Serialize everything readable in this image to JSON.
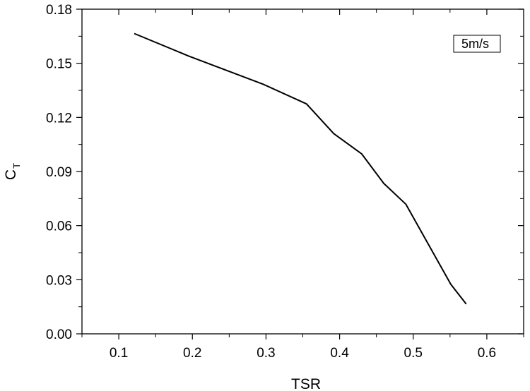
{
  "chart_data": {
    "type": "line",
    "xlabel": "TSR",
    "ylabel": "C",
    "ylabel_sub": "T",
    "xlim": [
      0.05,
      0.65
    ],
    "ylim": [
      0.0,
      0.18
    ],
    "x_ticks": [
      "0.1",
      "0.2",
      "0.3",
      "0.4",
      "0.5",
      "0.6"
    ],
    "y_ticks": [
      "0.00",
      "0.03",
      "0.06",
      "0.09",
      "0.12",
      "0.15",
      "0.18"
    ],
    "grid": false,
    "legend_position": "top-right",
    "series": [
      {
        "name": "5m/s",
        "color": "#000000",
        "x": [
          0.121,
          0.195,
          0.296,
          0.355,
          0.392,
          0.43,
          0.46,
          0.49,
          0.551,
          0.572
        ],
        "y": [
          0.1665,
          0.154,
          0.1384,
          0.1275,
          0.111,
          0.0998,
          0.0834,
          0.0719,
          0.0275,
          0.0165
        ]
      }
    ]
  }
}
